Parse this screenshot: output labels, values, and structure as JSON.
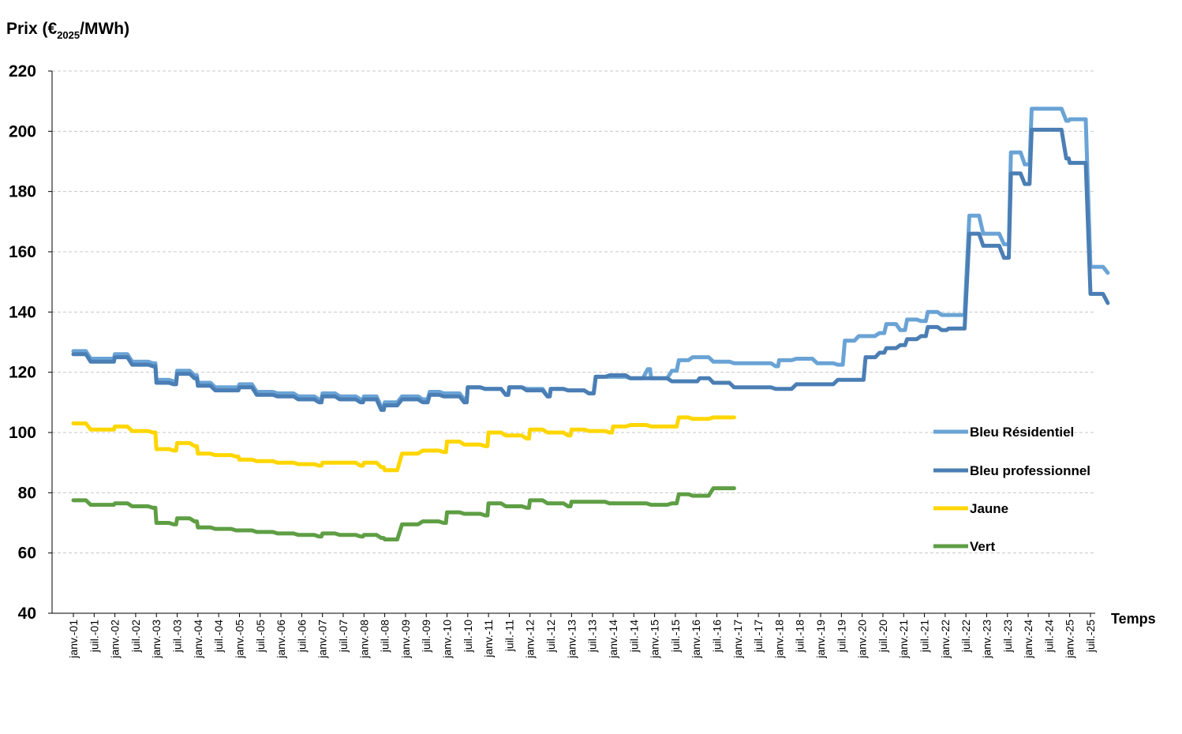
{
  "chart_data": {
    "type": "line",
    "ylabel": "Prix (€2025/MWh)",
    "ylabel_main": "Prix (€",
    "ylabel_sub": "2025",
    "ylabel_tail": "/MWh)",
    "xlabel": "Temps",
    "ylim": [
      40,
      220
    ],
    "yticks": [
      40,
      60,
      80,
      100,
      120,
      140,
      160,
      180,
      200,
      220
    ],
    "grid": true,
    "legend_position": "right",
    "x_start": "2001-01",
    "x_end": "2025-07",
    "xticks": [
      "janv.-01",
      "juil.-01",
      "janv.-02",
      "juil.-02",
      "janv.-03",
      "juil.-03",
      "janv.-04",
      "juil.-04",
      "janv.-05",
      "juil.-05",
      "janv.-06",
      "juil.-06",
      "janv.-07",
      "juil.-07",
      "janv.-08",
      "juil.-08",
      "janv.-09",
      "juil.-09",
      "janv.-10",
      "juil.-10",
      "janv.-11",
      "juil.-11",
      "janv.-12",
      "juil.-12",
      "janv.-13",
      "juil.-13",
      "janv.-14",
      "juil.-14",
      "janv.-15",
      "juil.-15",
      "janv.-16",
      "juil.-16",
      "janv.-17",
      "juil.-17",
      "janv.-18",
      "juil.-18",
      "janv.-19",
      "juil.-19",
      "janv.-20",
      "juil.-20",
      "janv.-21",
      "juil.-21",
      "janv.-22",
      "juil.-22",
      "janv.-23",
      "juil.-23",
      "janv.-24",
      "juil.-24",
      "janv.-25",
      "juil.-25"
    ],
    "series": [
      {
        "name": "Bleu Résidentiel",
        "color": "#6aa3d5",
        "points": [
          [
            "2001-01",
            127
          ],
          [
            "2001-06",
            124.5
          ],
          [
            "2001-12",
            124.5
          ],
          [
            "2002-01",
            126
          ],
          [
            "2002-06",
            123.5
          ],
          [
            "2002-12",
            123
          ],
          [
            "2003-01",
            117.5
          ],
          [
            "2003-06",
            117
          ],
          [
            "2003-07",
            120.5
          ],
          [
            "2003-12",
            119
          ],
          [
            "2004-01",
            116.5
          ],
          [
            "2004-06",
            115
          ],
          [
            "2004-12",
            115
          ],
          [
            "2005-01",
            116
          ],
          [
            "2005-06",
            113.5
          ],
          [
            "2005-12",
            113
          ],
          [
            "2006-06",
            112
          ],
          [
            "2006-12",
            111
          ],
          [
            "2007-01",
            113
          ],
          [
            "2007-06",
            112
          ],
          [
            "2007-12",
            111
          ],
          [
            "2008-01",
            112
          ],
          [
            "2008-06",
            108.5
          ],
          [
            "2008-07",
            110
          ],
          [
            "2008-12",
            112
          ],
          [
            "2009-06",
            111
          ],
          [
            "2009-08",
            113.5
          ],
          [
            "2009-12",
            113
          ],
          [
            "2010-06",
            111
          ],
          [
            "2010-07",
            115
          ],
          [
            "2010-12",
            114.5
          ],
          [
            "2011-06",
            112.5
          ],
          [
            "2011-07",
            115
          ],
          [
            "2011-12",
            114.5
          ],
          [
            "2012-06",
            112
          ],
          [
            "2012-07",
            114.5
          ],
          [
            "2012-12",
            114
          ],
          [
            "2013-06",
            113
          ],
          [
            "2013-08",
            118.5
          ],
          [
            "2013-12",
            118.5
          ],
          [
            "2014-06",
            118
          ],
          [
            "2014-12",
            118
          ],
          [
            "2014-11",
            121
          ],
          [
            "2015-06",
            120.5
          ],
          [
            "2015-08",
            124
          ],
          [
            "2015-12",
            125
          ],
          [
            "2016-06",
            123.5
          ],
          [
            "2016-12",
            123
          ],
          [
            "2017-06",
            123
          ],
          [
            "2017-12",
            122
          ],
          [
            "2018-01",
            124
          ],
          [
            "2018-06",
            124.5
          ],
          [
            "2018-12",
            123
          ],
          [
            "2019-06",
            122.5
          ],
          [
            "2019-08",
            130.5
          ],
          [
            "2019-12",
            132
          ],
          [
            "2020-06",
            133
          ],
          [
            "2020-08",
            136
          ],
          [
            "2020-12",
            134
          ],
          [
            "2021-02",
            137.5
          ],
          [
            "2021-06",
            137
          ],
          [
            "2021-08",
            140
          ],
          [
            "2021-12",
            139
          ],
          [
            "2022-02",
            139
          ],
          [
            "2022-08",
            172
          ],
          [
            "2022-12",
            166
          ],
          [
            "2023-06",
            162.5
          ],
          [
            "2023-08",
            193
          ],
          [
            "2023-12",
            189
          ],
          [
            "2024-02",
            207.5
          ],
          [
            "2024-06",
            207.5
          ],
          [
            "2024-12",
            203.5
          ],
          [
            "2025-01",
            204
          ],
          [
            "2025-07",
            155
          ],
          [
            "2025-12",
            153
          ]
        ]
      },
      {
        "name": "Bleu professionnel",
        "color": "#4a7eb4",
        "points": [
          [
            "2001-01",
            126
          ],
          [
            "2001-06",
            123.5
          ],
          [
            "2001-12",
            123.5
          ],
          [
            "2002-01",
            125
          ],
          [
            "2002-06",
            122.5
          ],
          [
            "2002-12",
            122
          ],
          [
            "2003-01",
            116.5
          ],
          [
            "2003-06",
            116
          ],
          [
            "2003-07",
            119.5
          ],
          [
            "2003-12",
            118
          ],
          [
            "2004-01",
            115.5
          ],
          [
            "2004-06",
            114
          ],
          [
            "2004-12",
            114
          ],
          [
            "2005-01",
            115
          ],
          [
            "2005-06",
            112.5
          ],
          [
            "2005-12",
            112
          ],
          [
            "2006-06",
            111
          ],
          [
            "2006-12",
            110
          ],
          [
            "2007-01",
            112
          ],
          [
            "2007-06",
            111
          ],
          [
            "2007-12",
            110
          ],
          [
            "2008-01",
            111
          ],
          [
            "2008-06",
            107.5
          ],
          [
            "2008-07",
            109
          ],
          [
            "2008-12",
            111
          ],
          [
            "2009-06",
            110
          ],
          [
            "2009-08",
            112.5
          ],
          [
            "2009-12",
            112
          ],
          [
            "2010-06",
            110
          ],
          [
            "2010-07",
            115
          ],
          [
            "2010-12",
            114.5
          ],
          [
            "2011-06",
            112.5
          ],
          [
            "2011-07",
            115
          ],
          [
            "2011-12",
            114
          ],
          [
            "2012-06",
            112
          ],
          [
            "2012-07",
            114.5
          ],
          [
            "2012-12",
            114
          ],
          [
            "2013-06",
            113
          ],
          [
            "2013-08",
            118.5
          ],
          [
            "2013-12",
            119
          ],
          [
            "2014-06",
            118
          ],
          [
            "2014-12",
            118
          ],
          [
            "2015-06",
            117
          ],
          [
            "2015-12",
            117
          ],
          [
            "2016-02",
            118
          ],
          [
            "2016-06",
            116.5
          ],
          [
            "2016-12",
            115
          ],
          [
            "2017-06",
            115
          ],
          [
            "2017-12",
            114.5
          ],
          [
            "2018-06",
            116
          ],
          [
            "2018-12",
            116
          ],
          [
            "2019-06",
            117.5
          ],
          [
            "2019-12",
            117.5
          ],
          [
            "2020-02",
            125
          ],
          [
            "2020-06",
            126.5
          ],
          [
            "2020-08",
            128
          ],
          [
            "2020-12",
            129
          ],
          [
            "2021-02",
            131
          ],
          [
            "2021-06",
            132
          ],
          [
            "2021-08",
            135
          ],
          [
            "2021-12",
            134
          ],
          [
            "2022-02",
            134.5
          ],
          [
            "2022-08",
            166
          ],
          [
            "2022-12",
            162
          ],
          [
            "2023-06",
            158
          ],
          [
            "2023-08",
            186
          ],
          [
            "2023-12",
            182.5
          ],
          [
            "2024-02",
            200.5
          ],
          [
            "2024-06",
            200.5
          ],
          [
            "2024-12",
            191
          ],
          [
            "2025-01",
            189.5
          ],
          [
            "2025-07",
            146
          ],
          [
            "2025-12",
            143
          ]
        ]
      },
      {
        "name": "Jaune",
        "color": "#ffd600",
        "points": [
          [
            "2001-01",
            103
          ],
          [
            "2001-06",
            101
          ],
          [
            "2001-12",
            101
          ],
          [
            "2002-01",
            102
          ],
          [
            "2002-06",
            100.5
          ],
          [
            "2002-12",
            100
          ],
          [
            "2003-01",
            94.5
          ],
          [
            "2003-06",
            94
          ],
          [
            "2003-07",
            96.5
          ],
          [
            "2003-12",
            95.5
          ],
          [
            "2004-01",
            93
          ],
          [
            "2004-06",
            92.5
          ],
          [
            "2004-12",
            92
          ],
          [
            "2005-01",
            91
          ],
          [
            "2005-06",
            90.5
          ],
          [
            "2005-12",
            90
          ],
          [
            "2006-06",
            89.5
          ],
          [
            "2006-12",
            89
          ],
          [
            "2007-01",
            90
          ],
          [
            "2007-06",
            90
          ],
          [
            "2007-12",
            89
          ],
          [
            "2008-01",
            90
          ],
          [
            "2008-06",
            88.5
          ],
          [
            "2008-07",
            87.5
          ],
          [
            "2008-12",
            93
          ],
          [
            "2009-06",
            94
          ],
          [
            "2009-12",
            93.5
          ],
          [
            "2010-01",
            97
          ],
          [
            "2010-06",
            96
          ],
          [
            "2010-12",
            95.5
          ],
          [
            "2011-01",
            100
          ],
          [
            "2011-06",
            99
          ],
          [
            "2011-12",
            98
          ],
          [
            "2012-01",
            101
          ],
          [
            "2012-06",
            100
          ],
          [
            "2012-12",
            99
          ],
          [
            "2013-01",
            101
          ],
          [
            "2013-06",
            100.5
          ],
          [
            "2013-12",
            100
          ],
          [
            "2014-01",
            102
          ],
          [
            "2014-06",
            102.5
          ],
          [
            "2014-12",
            102
          ],
          [
            "2015-06",
            102
          ],
          [
            "2015-08",
            105
          ],
          [
            "2015-12",
            104.5
          ],
          [
            "2016-06",
            105
          ],
          [
            "2016-12",
            105
          ]
        ]
      },
      {
        "name": "Vert",
        "color": "#5e9e44",
        "points": [
          [
            "2001-01",
            77.5
          ],
          [
            "2001-06",
            76
          ],
          [
            "2001-12",
            76
          ],
          [
            "2002-01",
            76.5
          ],
          [
            "2002-06",
            75.5
          ],
          [
            "2002-12",
            75
          ],
          [
            "2003-01",
            70
          ],
          [
            "2003-06",
            69.5
          ],
          [
            "2003-07",
            71.5
          ],
          [
            "2003-12",
            70.5
          ],
          [
            "2004-01",
            68.5
          ],
          [
            "2004-06",
            68
          ],
          [
            "2004-12",
            67.5
          ],
          [
            "2005-01",
            67.5
          ],
          [
            "2005-06",
            67
          ],
          [
            "2005-12",
            66.5
          ],
          [
            "2006-06",
            66
          ],
          [
            "2006-12",
            65.5
          ],
          [
            "2007-01",
            66.5
          ],
          [
            "2007-06",
            66
          ],
          [
            "2007-12",
            65.5
          ],
          [
            "2008-01",
            66
          ],
          [
            "2008-06",
            65
          ],
          [
            "2008-07",
            64.5
          ],
          [
            "2008-12",
            69.5
          ],
          [
            "2009-06",
            70.5
          ],
          [
            "2009-12",
            70
          ],
          [
            "2010-01",
            73.5
          ],
          [
            "2010-06",
            73
          ],
          [
            "2010-12",
            72.5
          ],
          [
            "2011-01",
            76.5
          ],
          [
            "2011-06",
            75.5
          ],
          [
            "2011-12",
            75
          ],
          [
            "2012-01",
            77.5
          ],
          [
            "2012-06",
            76.5
          ],
          [
            "2012-12",
            75.5
          ],
          [
            "2013-01",
            77
          ],
          [
            "2013-06",
            77
          ],
          [
            "2013-12",
            76.5
          ],
          [
            "2014-01",
            76.5
          ],
          [
            "2014-06",
            76.5
          ],
          [
            "2014-12",
            76
          ],
          [
            "2015-06",
            76.5
          ],
          [
            "2015-08",
            79.5
          ],
          [
            "2015-12",
            79
          ],
          [
            "2016-06",
            81.5
          ],
          [
            "2016-12",
            81.5
          ]
        ]
      }
    ]
  }
}
